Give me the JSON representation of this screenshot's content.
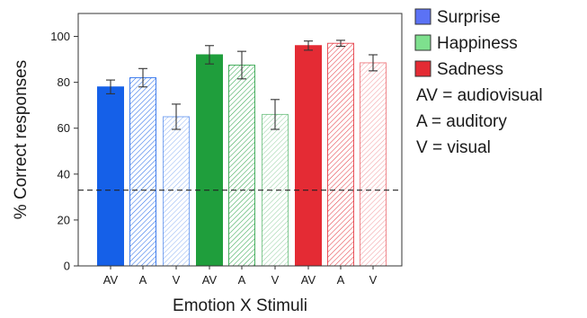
{
  "chart_data": {
    "type": "bar",
    "xlabel": "Emotion X Stimuli",
    "ylabel": "% Correct responses",
    "ylim": [
      0,
      110
    ],
    "yticks": [
      0,
      20,
      40,
      60,
      80,
      100
    ],
    "chance_level": 33,
    "categories": [
      "AV",
      "A",
      "V",
      "AV",
      "A",
      "V",
      "AV",
      "A",
      "V"
    ],
    "bars": [
      {
        "emotion": "Surprise",
        "stimulus": "AV",
        "value": 78,
        "error": 3,
        "fill": "solid"
      },
      {
        "emotion": "Surprise",
        "stimulus": "A",
        "value": 82,
        "error": 4,
        "fill": "hatch-dense"
      },
      {
        "emotion": "Surprise",
        "stimulus": "V",
        "value": 65,
        "error": 5.5,
        "fill": "hatch-light"
      },
      {
        "emotion": "Happiness",
        "stimulus": "AV",
        "value": 92,
        "error": 4,
        "fill": "solid"
      },
      {
        "emotion": "Happiness",
        "stimulus": "A",
        "value": 87.5,
        "error": 6,
        "fill": "hatch-dense"
      },
      {
        "emotion": "Happiness",
        "stimulus": "V",
        "value": 66,
        "error": 6.5,
        "fill": "hatch-light"
      },
      {
        "emotion": "Sadness",
        "stimulus": "AV",
        "value": 96,
        "error": 2,
        "fill": "solid"
      },
      {
        "emotion": "Sadness",
        "stimulus": "A",
        "value": 97,
        "error": 1.3,
        "fill": "hatch-dense"
      },
      {
        "emotion": "Sadness",
        "stimulus": "V",
        "value": 88.5,
        "error": 3.5,
        "fill": "hatch-light"
      }
    ],
    "colors": {
      "Surprise": {
        "stroke": "#1560e8",
        "legend": "#5b72f5"
      },
      "Happiness": {
        "stroke": "#1f9e3c",
        "legend": "#7ee08e"
      },
      "Sadness": {
        "stroke": "#e42b34",
        "legend": "#e42b34"
      }
    },
    "legend": {
      "position": "right",
      "entries": [
        "Surprise",
        "Happiness",
        "Sadness"
      ],
      "notes": [
        "AV = audiovisual",
        "A = auditory",
        "V = visual"
      ]
    }
  }
}
